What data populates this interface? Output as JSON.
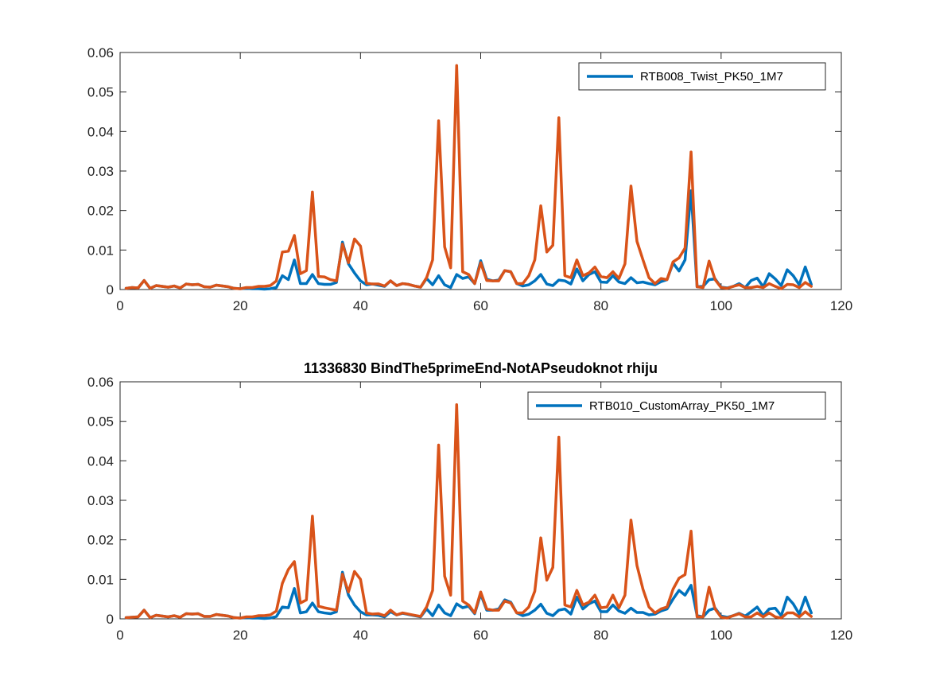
{
  "chart_data": [
    {
      "type": "line",
      "title": "",
      "xlabel": "",
      "ylabel": "",
      "xlim": [
        0,
        120
      ],
      "ylim": [
        0,
        0.06
      ],
      "xticks": [
        0,
        20,
        40,
        60,
        80,
        100,
        120
      ],
      "yticks": [
        0,
        0.01,
        0.02,
        0.03,
        0.04,
        0.05,
        0.06
      ],
      "xtick_labels": [
        "0",
        "20",
        "40",
        "60",
        "80",
        "100",
        "120"
      ],
      "ytick_labels": [
        "0",
        "0.01",
        "0.02",
        "0.03",
        "0.04",
        "0.05",
        "0.06"
      ],
      "grid": false,
      "legend_position": "top-right",
      "legend_entries": [
        "RTB008_Twist_PK50_1M7"
      ],
      "series": [
        {
          "name": "RTB008_Twist_PK50_1M7",
          "color": "#0072BD",
          "x": [
            1,
            2,
            3,
            4,
            5,
            6,
            7,
            8,
            9,
            10,
            11,
            12,
            13,
            14,
            15,
            16,
            17,
            18,
            19,
            20,
            21,
            22,
            23,
            24,
            25,
            26,
            27,
            28,
            29,
            30,
            31,
            32,
            33,
            34,
            35,
            36,
            37,
            38,
            39,
            40,
            41,
            42,
            43,
            44,
            45,
            46,
            47,
            48,
            49,
            50,
            51,
            52,
            53,
            54,
            55,
            56,
            57,
            58,
            59,
            60,
            61,
            62,
            63,
            64,
            65,
            66,
            67,
            68,
            69,
            70,
            71,
            72,
            73,
            74,
            75,
            76,
            77,
            78,
            79,
            80,
            81,
            82,
            83,
            84,
            85,
            86,
            87,
            88,
            89,
            90,
            91,
            92,
            93,
            94,
            95,
            96,
            97,
            98,
            99,
            100,
            101,
            102,
            103,
            104,
            105,
            106,
            107,
            108,
            109,
            110,
            111,
            112,
            113,
            114,
            115
          ],
          "y": [
            0.0003,
            0.0005,
            0.0004,
            0.0023,
            0.0003,
            0.001,
            0.0008,
            0.0006,
            0.0009,
            0.0004,
            0.0014,
            0.0012,
            0.0013,
            0.0007,
            0.0006,
            0.0011,
            0.0009,
            0.0007,
            0.0003,
            0.0002,
            0.0003,
            0.0002,
            0.0002,
            0.0001,
            0.0002,
            0.0005,
            0.0035,
            0.0025,
            0.0075,
            0.0015,
            0.0015,
            0.0038,
            0.0015,
            0.0013,
            0.0013,
            0.0018,
            0.012,
            0.0065,
            0.0042,
            0.0022,
            0.0012,
            0.0014,
            0.0011,
            0.0008,
            0.0022,
            0.001,
            0.0015,
            0.0013,
            0.0009,
            0.0006,
            0.0028,
            0.0012,
            0.0035,
            0.0012,
            0.0005,
            0.0038,
            0.0028,
            0.0032,
            0.0015,
            0.0073,
            0.0026,
            0.0022,
            0.0024,
            0.0048,
            0.0045,
            0.0015,
            0.0009,
            0.0012,
            0.0022,
            0.0038,
            0.0014,
            0.001,
            0.0024,
            0.0022,
            0.0014,
            0.0052,
            0.0022,
            0.0038,
            0.0045,
            0.0019,
            0.0018,
            0.0035,
            0.0019,
            0.0015,
            0.003,
            0.0017,
            0.0019,
            0.0015,
            0.0012,
            0.002,
            0.0025,
            0.0067,
            0.0047,
            0.0075,
            0.025,
            0.0007,
            0.0008,
            0.0025,
            0.0027,
            0.0006,
            0.0004,
            0.0008,
            0.0015,
            0.0005,
            0.0023,
            0.0029,
            0.0007,
            0.004,
            0.0027,
            0.001,
            0.005,
            0.0035,
            0.0012,
            0.0057,
            0.0013
          ]
        },
        {
          "name": "",
          "color": "#D95319",
          "x": [
            1,
            2,
            3,
            4,
            5,
            6,
            7,
            8,
            9,
            10,
            11,
            12,
            13,
            14,
            15,
            16,
            17,
            18,
            19,
            20,
            21,
            22,
            23,
            24,
            25,
            26,
            27,
            28,
            29,
            30,
            31,
            32,
            33,
            34,
            35,
            36,
            37,
            38,
            39,
            40,
            41,
            42,
            43,
            44,
            45,
            46,
            47,
            48,
            49,
            50,
            51,
            52,
            53,
            54,
            55,
            56,
            57,
            58,
            59,
            60,
            61,
            62,
            63,
            64,
            65,
            66,
            67,
            68,
            69,
            70,
            71,
            72,
            73,
            74,
            75,
            76,
            77,
            78,
            79,
            80,
            81,
            82,
            83,
            84,
            85,
            86,
            87,
            88,
            89,
            90,
            91,
            92,
            93,
            94,
            95,
            96,
            97,
            98,
            99,
            100,
            101,
            102,
            103,
            104,
            105,
            106,
            107,
            108,
            109,
            110,
            111,
            112,
            113,
            114,
            115
          ],
          "y": [
            0.0003,
            0.0005,
            0.0004,
            0.0023,
            0.0003,
            0.001,
            0.0008,
            0.0006,
            0.0009,
            0.0004,
            0.0014,
            0.0012,
            0.0013,
            0.0007,
            0.0006,
            0.0011,
            0.0009,
            0.0007,
            0.0003,
            0.0002,
            0.0005,
            0.0005,
            0.0008,
            0.0008,
            0.001,
            0.0022,
            0.0095,
            0.0097,
            0.0137,
            0.004,
            0.0048,
            0.0247,
            0.0033,
            0.0032,
            0.0025,
            0.0022,
            0.0115,
            0.0068,
            0.0128,
            0.011,
            0.0016,
            0.0014,
            0.0014,
            0.0009,
            0.0022,
            0.001,
            0.0015,
            0.0013,
            0.0009,
            0.0006,
            0.003,
            0.0075,
            0.0427,
            0.0108,
            0.0055,
            0.0567,
            0.0045,
            0.0038,
            0.0015,
            0.0068,
            0.0023,
            0.0022,
            0.0022,
            0.0048,
            0.0045,
            0.0015,
            0.0015,
            0.0035,
            0.0075,
            0.0212,
            0.0095,
            0.0112,
            0.0435,
            0.0035,
            0.003,
            0.0075,
            0.0035,
            0.0042,
            0.0057,
            0.0033,
            0.003,
            0.0045,
            0.0028,
            0.0065,
            0.0262,
            0.0122,
            0.0075,
            0.003,
            0.0015,
            0.0028,
            0.0025,
            0.007,
            0.008,
            0.0105,
            0.0348,
            0.0007,
            0.0005,
            0.0072,
            0.0025,
            0.0005,
            0.0003,
            0.0008,
            0.0012,
            0.0005,
            0.0005,
            0.0008,
            0.0005,
            0.0015,
            0.0008,
            0.0002,
            0.0013,
            0.0012,
            0.0005,
            0.0018,
            0.0008
          ]
        }
      ]
    },
    {
      "type": "line",
      "title": "11336830  BindThe5primeEnd-NotAPseudoknot  rhiju",
      "xlabel": "",
      "ylabel": "",
      "xlim": [
        0,
        120
      ],
      "ylim": [
        0,
        0.06
      ],
      "xticks": [
        0,
        20,
        40,
        60,
        80,
        100,
        120
      ],
      "yticks": [
        0,
        0.01,
        0.02,
        0.03,
        0.04,
        0.05,
        0.06
      ],
      "xtick_labels": [
        "0",
        "20",
        "40",
        "60",
        "80",
        "100",
        "120"
      ],
      "ytick_labels": [
        "0",
        "0.01",
        "0.02",
        "0.03",
        "0.04",
        "0.05",
        "0.06"
      ],
      "grid": false,
      "legend_position": "top-right",
      "legend_entries": [
        "RTB010_CustomArray_PK50_1M7"
      ],
      "series": [
        {
          "name": "RTB010_CustomArray_PK50_1M7",
          "color": "#0072BD",
          "x": [
            1,
            2,
            3,
            4,
            5,
            6,
            7,
            8,
            9,
            10,
            11,
            12,
            13,
            14,
            15,
            16,
            17,
            18,
            19,
            20,
            21,
            22,
            23,
            24,
            25,
            26,
            27,
            28,
            29,
            30,
            31,
            32,
            33,
            34,
            35,
            36,
            37,
            38,
            39,
            40,
            41,
            42,
            43,
            44,
            45,
            46,
            47,
            48,
            49,
            50,
            51,
            52,
            53,
            54,
            55,
            56,
            57,
            58,
            59,
            60,
            61,
            62,
            63,
            64,
            65,
            66,
            67,
            68,
            69,
            70,
            71,
            72,
            73,
            74,
            75,
            76,
            77,
            78,
            79,
            80,
            81,
            82,
            83,
            84,
            85,
            86,
            87,
            88,
            89,
            90,
            91,
            92,
            93,
            94,
            95,
            96,
            97,
            98,
            99,
            100,
            101,
            102,
            103,
            104,
            105,
            106,
            107,
            108,
            109,
            110,
            111,
            112,
            113,
            114,
            115
          ],
          "y": [
            0.0003,
            0.0004,
            0.0005,
            0.0022,
            0.0003,
            0.0009,
            0.0007,
            0.0005,
            0.0008,
            0.0004,
            0.0013,
            0.0012,
            0.0013,
            0.0006,
            0.0006,
            0.0011,
            0.0009,
            0.0007,
            0.0003,
            0.0002,
            0.0003,
            0.0002,
            0.0002,
            0.0001,
            0.0002,
            0.0006,
            0.003,
            0.0028,
            0.0077,
            0.0015,
            0.0018,
            0.004,
            0.0018,
            0.0015,
            0.0013,
            0.0018,
            0.0118,
            0.006,
            0.0035,
            0.0018,
            0.001,
            0.001,
            0.0009,
            0.0005,
            0.0018,
            0.001,
            0.0014,
            0.0011,
            0.0008,
            0.0005,
            0.0025,
            0.0008,
            0.0035,
            0.0015,
            0.0008,
            0.0038,
            0.0028,
            0.0032,
            0.0013,
            0.0063,
            0.0022,
            0.0022,
            0.0025,
            0.0048,
            0.0042,
            0.0015,
            0.0008,
            0.0012,
            0.0022,
            0.0037,
            0.0014,
            0.0008,
            0.0022,
            0.0025,
            0.0012,
            0.0055,
            0.0025,
            0.0038,
            0.0045,
            0.0018,
            0.0018,
            0.0035,
            0.002,
            0.0014,
            0.0027,
            0.0016,
            0.0016,
            0.001,
            0.0012,
            0.002,
            0.0025,
            0.005,
            0.0072,
            0.006,
            0.0085,
            0.0008,
            0.0005,
            0.0022,
            0.0027,
            0.0007,
            0.0004,
            0.0008,
            0.0014,
            0.0007,
            0.0018,
            0.003,
            0.0008,
            0.0025,
            0.0027,
            0.0008,
            0.0055,
            0.0038,
            0.0012,
            0.0055,
            0.0015
          ]
        },
        {
          "name": "",
          "color": "#D95319",
          "x": [
            1,
            2,
            3,
            4,
            5,
            6,
            7,
            8,
            9,
            10,
            11,
            12,
            13,
            14,
            15,
            16,
            17,
            18,
            19,
            20,
            21,
            22,
            23,
            24,
            25,
            26,
            27,
            28,
            29,
            30,
            31,
            32,
            33,
            34,
            35,
            36,
            37,
            38,
            39,
            40,
            41,
            42,
            43,
            44,
            45,
            46,
            47,
            48,
            49,
            50,
            51,
            52,
            53,
            54,
            55,
            56,
            57,
            58,
            59,
            60,
            61,
            62,
            63,
            64,
            65,
            66,
            67,
            68,
            69,
            70,
            71,
            72,
            73,
            74,
            75,
            76,
            77,
            78,
            79,
            80,
            81,
            82,
            83,
            84,
            85,
            86,
            87,
            88,
            89,
            90,
            91,
            92,
            93,
            94,
            95,
            96,
            97,
            98,
            99,
            100,
            101,
            102,
            103,
            104,
            105,
            106,
            107,
            108,
            109,
            110,
            111,
            112,
            113,
            114,
            115
          ],
          "y": [
            0.0003,
            0.0004,
            0.0005,
            0.0022,
            0.0003,
            0.0009,
            0.0007,
            0.0005,
            0.0008,
            0.0004,
            0.0013,
            0.0012,
            0.0013,
            0.0006,
            0.0006,
            0.0011,
            0.0009,
            0.0007,
            0.0003,
            0.0002,
            0.0005,
            0.0005,
            0.0008,
            0.0008,
            0.001,
            0.002,
            0.009,
            0.0125,
            0.0145,
            0.004,
            0.0048,
            0.026,
            0.0032,
            0.0028,
            0.0025,
            0.0022,
            0.0113,
            0.0068,
            0.012,
            0.01,
            0.0015,
            0.0012,
            0.0013,
            0.0008,
            0.0022,
            0.001,
            0.0015,
            0.0012,
            0.0009,
            0.0006,
            0.003,
            0.0072,
            0.044,
            0.0108,
            0.006,
            0.0542,
            0.0045,
            0.0035,
            0.0015,
            0.0068,
            0.0025,
            0.0022,
            0.0022,
            0.0045,
            0.004,
            0.0015,
            0.0015,
            0.003,
            0.007,
            0.0205,
            0.0098,
            0.013,
            0.046,
            0.0035,
            0.003,
            0.0072,
            0.0035,
            0.0042,
            0.006,
            0.0028,
            0.003,
            0.006,
            0.0028,
            0.006,
            0.025,
            0.0135,
            0.0075,
            0.003,
            0.0015,
            0.0025,
            0.003,
            0.0075,
            0.0103,
            0.0112,
            0.0222,
            0.0005,
            0.0005,
            0.008,
            0.0025,
            0.0004,
            0.0002,
            0.0008,
            0.0013,
            0.0005,
            0.0005,
            0.0015,
            0.0005,
            0.0015,
            0.0005,
            0.0002,
            0.0015,
            0.0015,
            0.0005,
            0.0018,
            0.0006
          ]
        }
      ]
    }
  ]
}
